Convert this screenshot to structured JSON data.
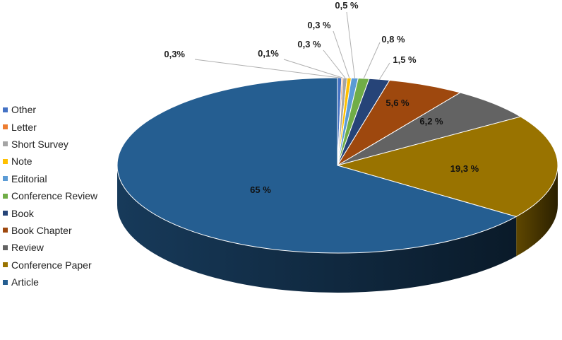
{
  "chart_data": {
    "type": "pie",
    "style": "3d",
    "title": "",
    "legend_position": "left",
    "slices": [
      {
        "name": "Other",
        "value": 0.3,
        "label": "0,3%",
        "color": "#4472c4"
      },
      {
        "name": "Letter",
        "value": 0.1,
        "label": "0,1%",
        "color": "#ed7d31"
      },
      {
        "name": "Short Survey",
        "value": 0.3,
        "label": "0,3 %",
        "color": "#a5a5a5"
      },
      {
        "name": "Note",
        "value": 0.3,
        "label": "0,3 %",
        "color": "#ffc000"
      },
      {
        "name": "Editorial",
        "value": 0.5,
        "label": "0,5 %",
        "color": "#5b9bd5"
      },
      {
        "name": "Conference Review",
        "value": 0.8,
        "label": "0,8 %",
        "color": "#70ad47"
      },
      {
        "name": "Book",
        "value": 1.5,
        "label": "1,5 %",
        "color": "#264478"
      },
      {
        "name": "Book Chapter",
        "value": 5.6,
        "label": "5,6 %",
        "color": "#9e480e"
      },
      {
        "name": "Review",
        "value": 6.2,
        "label": "6,2 %",
        "color": "#636363"
      },
      {
        "name": "Conference Paper",
        "value": 19.3,
        "label": "19,3 %",
        "color": "#997300"
      },
      {
        "name": "Article",
        "value": 65,
        "label": "65 %",
        "color": "#255e91"
      }
    ]
  }
}
